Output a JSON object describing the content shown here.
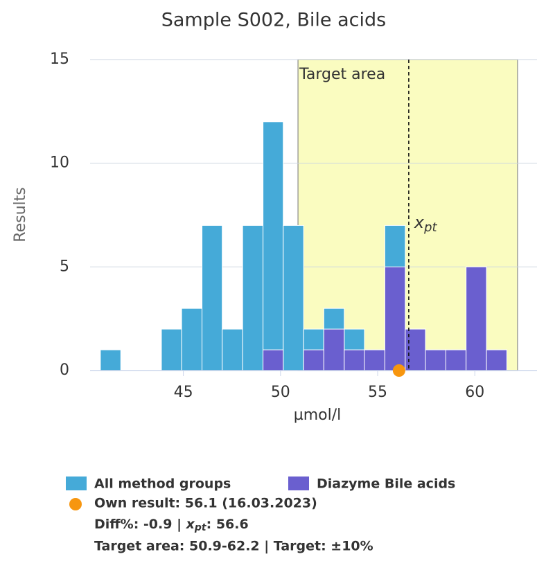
{
  "chart_data": {
    "type": "histogram",
    "title": "Sample S002, Bile acids",
    "x_label": "µmol/l",
    "y_label": "Results",
    "bins": [
      40.73,
      41.78,
      42.82,
      43.87,
      44.91,
      45.96,
      47.0,
      48.05,
      49.1,
      50.14,
      51.19,
      52.23,
      53.28,
      54.32,
      55.37,
      56.42,
      57.46,
      58.51,
      59.55,
      60.6,
      61.65
    ],
    "series": [
      {
        "name": "All method groups",
        "color": "#45aad8",
        "values": [
          1,
          0,
          0,
          2,
          3,
          7,
          2,
          7,
          12,
          7,
          2,
          3,
          2,
          1,
          7,
          2,
          1,
          1,
          5,
          1
        ]
      },
      {
        "name": "Diazyme Bile acids",
        "color": "#6a5fcf",
        "values": [
          0,
          0,
          0,
          0,
          0,
          0,
          0,
          0,
          1,
          0,
          1,
          2,
          1,
          1,
          5,
          2,
          1,
          1,
          5,
          1
        ]
      }
    ],
    "xlim": [
      40.2,
      63.2
    ],
    "xticks": [
      45,
      50,
      55,
      60
    ],
    "ylim": [
      0,
      15
    ],
    "yticks": [
      0,
      5,
      10,
      15
    ],
    "grid": true,
    "target_area": {
      "label": "Target area",
      "range": [
        50.9,
        62.2
      ],
      "color": "#fafcc0"
    },
    "xpt": {
      "value": 56.6,
      "symbol": "x",
      "subscript": "pt"
    },
    "own_result": {
      "value": 56.1,
      "color": "#f7960f"
    },
    "legend_text": {
      "own": "Own result: 56.1 (16.03.2023)",
      "diff": [
        "Diff%: -0.9 | ",
        "x",
        "pt",
        ": 56.6"
      ],
      "target": "Target area: 50.9-62.2 | Target: ±10%"
    }
  }
}
